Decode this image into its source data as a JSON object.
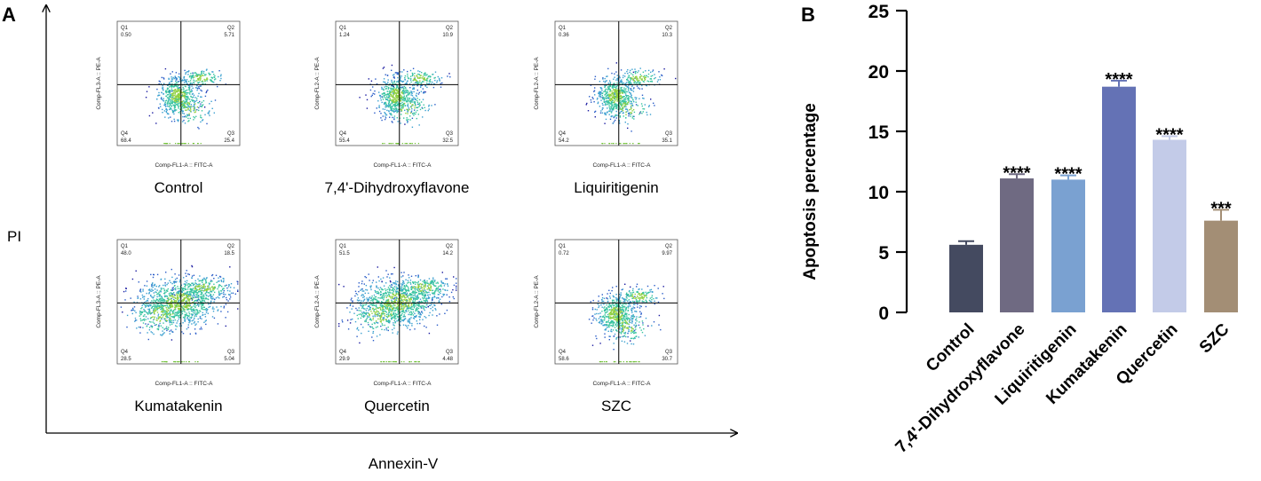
{
  "panel_a": {
    "label": "A",
    "y_axis_label": "PI",
    "x_axis_label": "Annexin-V",
    "plot_axis_y": "Comp-FL2-A :: PE-A",
    "plot_axis_y_alt": "Comp-FL3-A :: PE-A",
    "plot_axis_x": "Comp-FL1-A :: FITC-A",
    "quadrant_names": [
      "Q1",
      "Q2",
      "Q3",
      "Q4"
    ],
    "plots": [
      {
        "name": "Control",
        "q1": "0.50",
        "q2": "5.71",
        "q3": "25.4",
        "q4": "68.4",
        "density": "low",
        "y_label_variant": "alt"
      },
      {
        "name": "7,4'-Dihydroxyflavone",
        "q1": "1.24",
        "q2": "10.9",
        "q3": "32.5",
        "q4": "55.4",
        "density": "low",
        "y_label_variant": "main"
      },
      {
        "name": "Liquiritigenin",
        "q1": "0.36",
        "q2": "10.3",
        "q3": "35.1",
        "q4": "54.2",
        "density": "low",
        "y_label_variant": "main"
      },
      {
        "name": "Kumatakenin",
        "q1": "48.0",
        "q2": "18.5",
        "q3": "5.04",
        "q4": "28.5",
        "density": "high",
        "y_label_variant": "alt"
      },
      {
        "name": "Quercetin",
        "q1": "51.5",
        "q2": "14.2",
        "q3": "4.48",
        "q4": "29.9",
        "density": "high",
        "y_label_variant": "main"
      },
      {
        "name": "SZC",
        "q1": "0.72",
        "q2": "9.97",
        "q3": "30.7",
        "q4": "58.6",
        "density": "low",
        "y_label_variant": "main"
      }
    ]
  },
  "chart_data": {
    "type": "bar",
    "panel_label": "B",
    "title": "",
    "xlabel": "",
    "ylabel": "Apoptosis percentage",
    "ylim": [
      0,
      25
    ],
    "yticks": [
      "0",
      "5",
      "10",
      "15",
      "20",
      "25"
    ],
    "categories": [
      "Control",
      "7,4'-Dihydroxyflavone",
      "Liquiritigenin",
      "Kumatakenin",
      "Quercetin",
      "SZC"
    ],
    "values": [
      5.6,
      11.1,
      11.0,
      18.7,
      14.3,
      7.6
    ],
    "errors": [
      0.3,
      0.35,
      0.35,
      0.5,
      0.3,
      0.9
    ],
    "significance": [
      "",
      "****",
      "****",
      "****",
      "****",
      "***"
    ],
    "colors": [
      "#444a60",
      "#6f6a82",
      "#7aa1d1",
      "#6472b5",
      "#c3cbe8",
      "#a38e75"
    ]
  }
}
